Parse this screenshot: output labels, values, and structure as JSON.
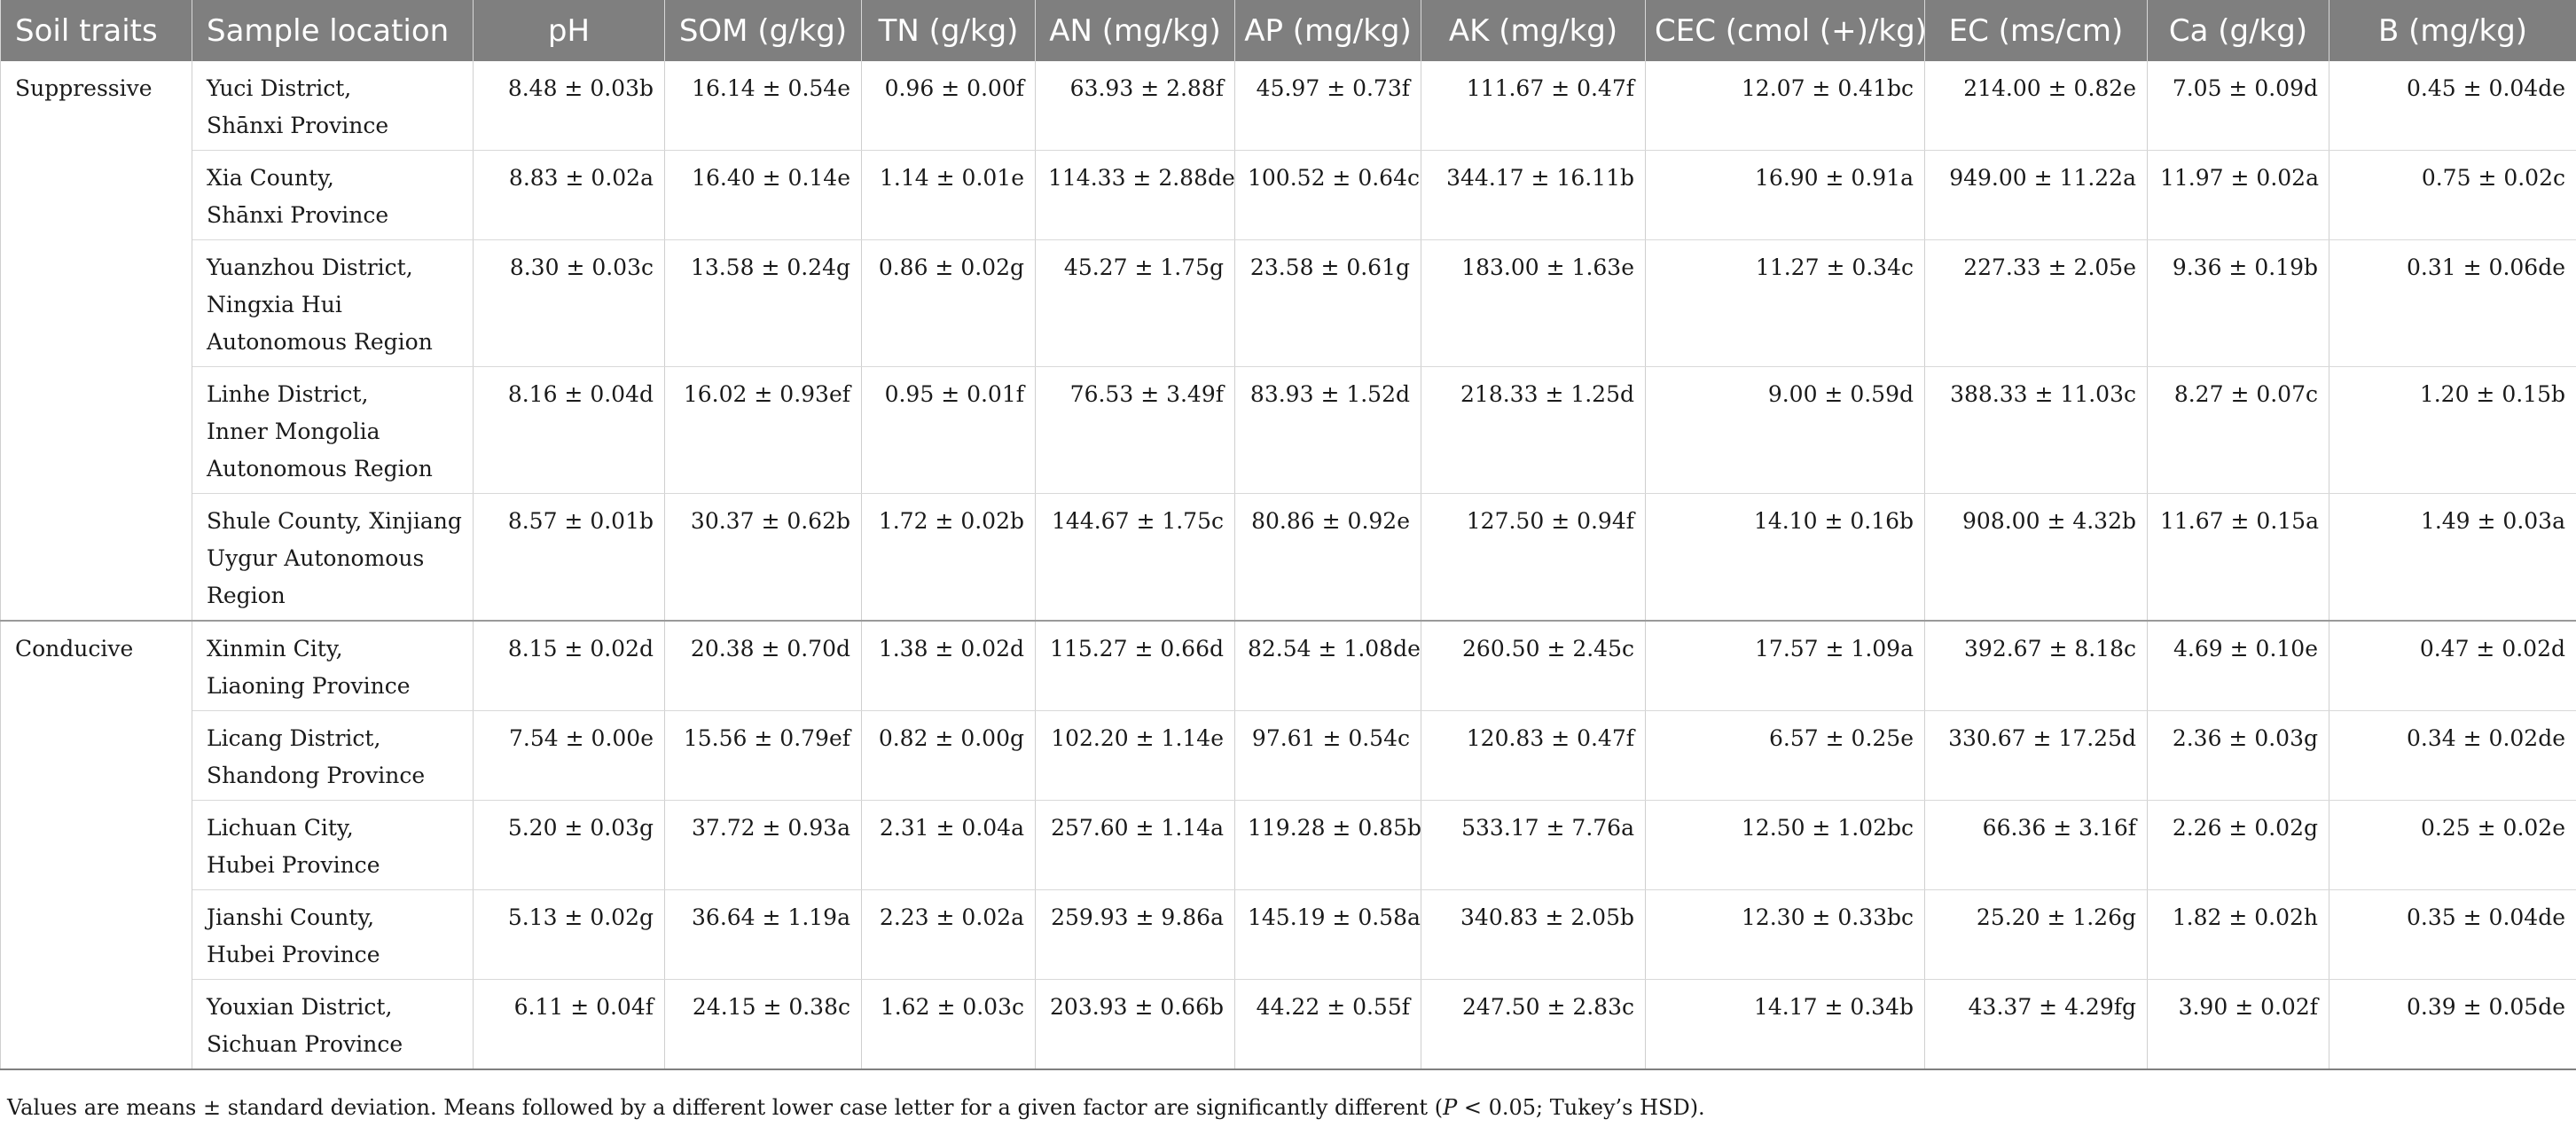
{
  "header": {
    "soil_traits": "Soil traits",
    "sample_location": "Sample location",
    "ph": "pH",
    "som": "SOM (g/kg)",
    "tn": "TN (g/kg)",
    "an": "AN (mg/kg)",
    "ap": "AP (mg/kg)",
    "ak": "AK (mg/kg)",
    "cec": "CEC (cmol (+)/kg)",
    "ec": "EC (ms/cm)",
    "ca": "Ca (g/kg)",
    "b": "B (mg/kg)"
  },
  "groups": [
    {
      "trait": "Suppressive",
      "rows": [
        {
          "loc": [
            "Yuci District,",
            "Shānxi Province"
          ],
          "ph": "8.48 ± 0.03b",
          "som": "16.14 ± 0.54e",
          "tn": "0.96 ± 0.00f",
          "an": "63.93 ± 2.88f",
          "ap": "45.97 ± 0.73f",
          "ak": "111.67 ± 0.47f",
          "cec": "12.07 ± 0.41bc",
          "ec": "214.00 ± 0.82e",
          "ca": "7.05 ± 0.09d",
          "b": "0.45 ± 0.04de"
        },
        {
          "loc": [
            "Xia County,",
            "Shānxi Province"
          ],
          "ph": "8.83 ± 0.02a",
          "som": "16.40 ± 0.14e",
          "tn": "1.14 ± 0.01e",
          "an": "114.33 ± 2.88de",
          "ap": "100.52 ± 0.64c",
          "ak": "344.17 ± 16.11b",
          "cec": "16.90 ± 0.91a",
          "ec": "949.00 ± 11.22a",
          "ca": "11.97 ± 0.02a",
          "b": "0.75 ± 0.02c"
        },
        {
          "loc": [
            "Yuanzhou District,",
            "Ningxia Hui",
            "Autonomous Region"
          ],
          "ph": "8.30 ± 0.03c",
          "som": "13.58 ± 0.24g",
          "tn": "0.86 ± 0.02g",
          "an": "45.27 ± 1.75g",
          "ap": "23.58 ± 0.61g",
          "ak": "183.00 ± 1.63e",
          "cec": "11.27 ± 0.34c",
          "ec": "227.33 ± 2.05e",
          "ca": "9.36 ± 0.19b",
          "b": "0.31 ± 0.06de"
        },
        {
          "loc": [
            "Linhe District,",
            "Inner Mongolia",
            "Autonomous Region"
          ],
          "ph": "8.16 ± 0.04d",
          "som": "16.02 ± 0.93ef",
          "tn": "0.95 ± 0.01f",
          "an": "76.53 ± 3.49f",
          "ap": "83.93 ± 1.52d",
          "ak": "218.33 ± 1.25d",
          "cec": "9.00 ± 0.59d",
          "ec": "388.33 ± 11.03c",
          "ca": "8.27 ± 0.07c",
          "b": "1.20 ± 0.15b"
        },
        {
          "loc": [
            "Shule County, Xinjiang",
            "Uygur Autonomous",
            "Region"
          ],
          "ph": "8.57 ± 0.01b",
          "som": "30.37 ± 0.62b",
          "tn": "1.72 ± 0.02b",
          "an": "144.67 ± 1.75c",
          "ap": "80.86 ± 0.92e",
          "ak": "127.50 ± 0.94f",
          "cec": "14.10 ± 0.16b",
          "ec": "908.00 ± 4.32b",
          "ca": "11.67 ± 0.15a",
          "b": "1.49 ± 0.03a"
        }
      ]
    },
    {
      "trait": "Conducive",
      "rows": [
        {
          "loc": [
            "Xinmin City,",
            "Liaoning Province"
          ],
          "ph": "8.15 ± 0.02d",
          "som": "20.38 ± 0.70d",
          "tn": "1.38 ± 0.02d",
          "an": "115.27 ± 0.66d",
          "ap": "82.54 ± 1.08de",
          "ak": "260.50 ± 2.45c",
          "cec": "17.57 ± 1.09a",
          "ec": "392.67 ± 8.18c",
          "ca": "4.69 ± 0.10e",
          "b": "0.47 ± 0.02d"
        },
        {
          "loc": [
            "Licang District,",
            "Shandong Province"
          ],
          "ph": "7.54 ± 0.00e",
          "som": "15.56 ± 0.79ef",
          "tn": "0.82 ± 0.00g",
          "an": "102.20 ± 1.14e",
          "ap": "97.61 ± 0.54c",
          "ak": "120.83 ± 0.47f",
          "cec": "6.57 ± 0.25e",
          "ec": "330.67 ± 17.25d",
          "ca": "2.36 ± 0.03g",
          "b": "0.34 ± 0.02de"
        },
        {
          "loc": [
            "Lichuan City,",
            "Hubei Province"
          ],
          "ph": "5.20 ± 0.03g",
          "som": "37.72 ± 0.93a",
          "tn": "2.31 ± 0.04a",
          "an": "257.60 ± 1.14a",
          "ap": "119.28 ± 0.85b",
          "ak": "533.17 ± 7.76a",
          "cec": "12.50 ± 1.02bc",
          "ec": "66.36 ± 3.16f",
          "ca": "2.26 ± 0.02g",
          "b": "0.25 ± 0.02e"
        },
        {
          "loc": [
            "Jianshi County,",
            "Hubei Province"
          ],
          "ph": "5.13 ± 0.02g",
          "som": "36.64 ± 1.19a",
          "tn": "2.23 ± 0.02a",
          "an": "259.93 ± 9.86a",
          "ap": "145.19 ± 0.58a",
          "ak": "340.83 ± 2.05b",
          "cec": "12.30 ± 0.33bc",
          "ec": "25.20 ± 1.26g",
          "ca": "1.82 ± 0.02h",
          "b": "0.35 ± 0.04de"
        },
        {
          "loc": [
            "Youxian District,",
            "Sichuan Province"
          ],
          "ph": "6.11 ± 0.04f",
          "som": "24.15 ± 0.38c",
          "tn": "1.62 ± 0.03c",
          "an": "203.93 ± 0.66b",
          "ap": "44.22 ± 0.55f",
          "ak": "247.50 ± 2.83c",
          "cec": "14.17 ± 0.34b",
          "ec": "43.37 ± 4.29fg",
          "ca": "3.90 ± 0.02f",
          "b": "0.39 ± 0.05de"
        }
      ]
    }
  ],
  "footnote": {
    "part1": "Values are means ± standard deviation. Means followed by a different lower case letter for a given factor are significantly different (",
    "p": "P",
    "part2": " < 0.05; Tukey’s HSD)."
  }
}
